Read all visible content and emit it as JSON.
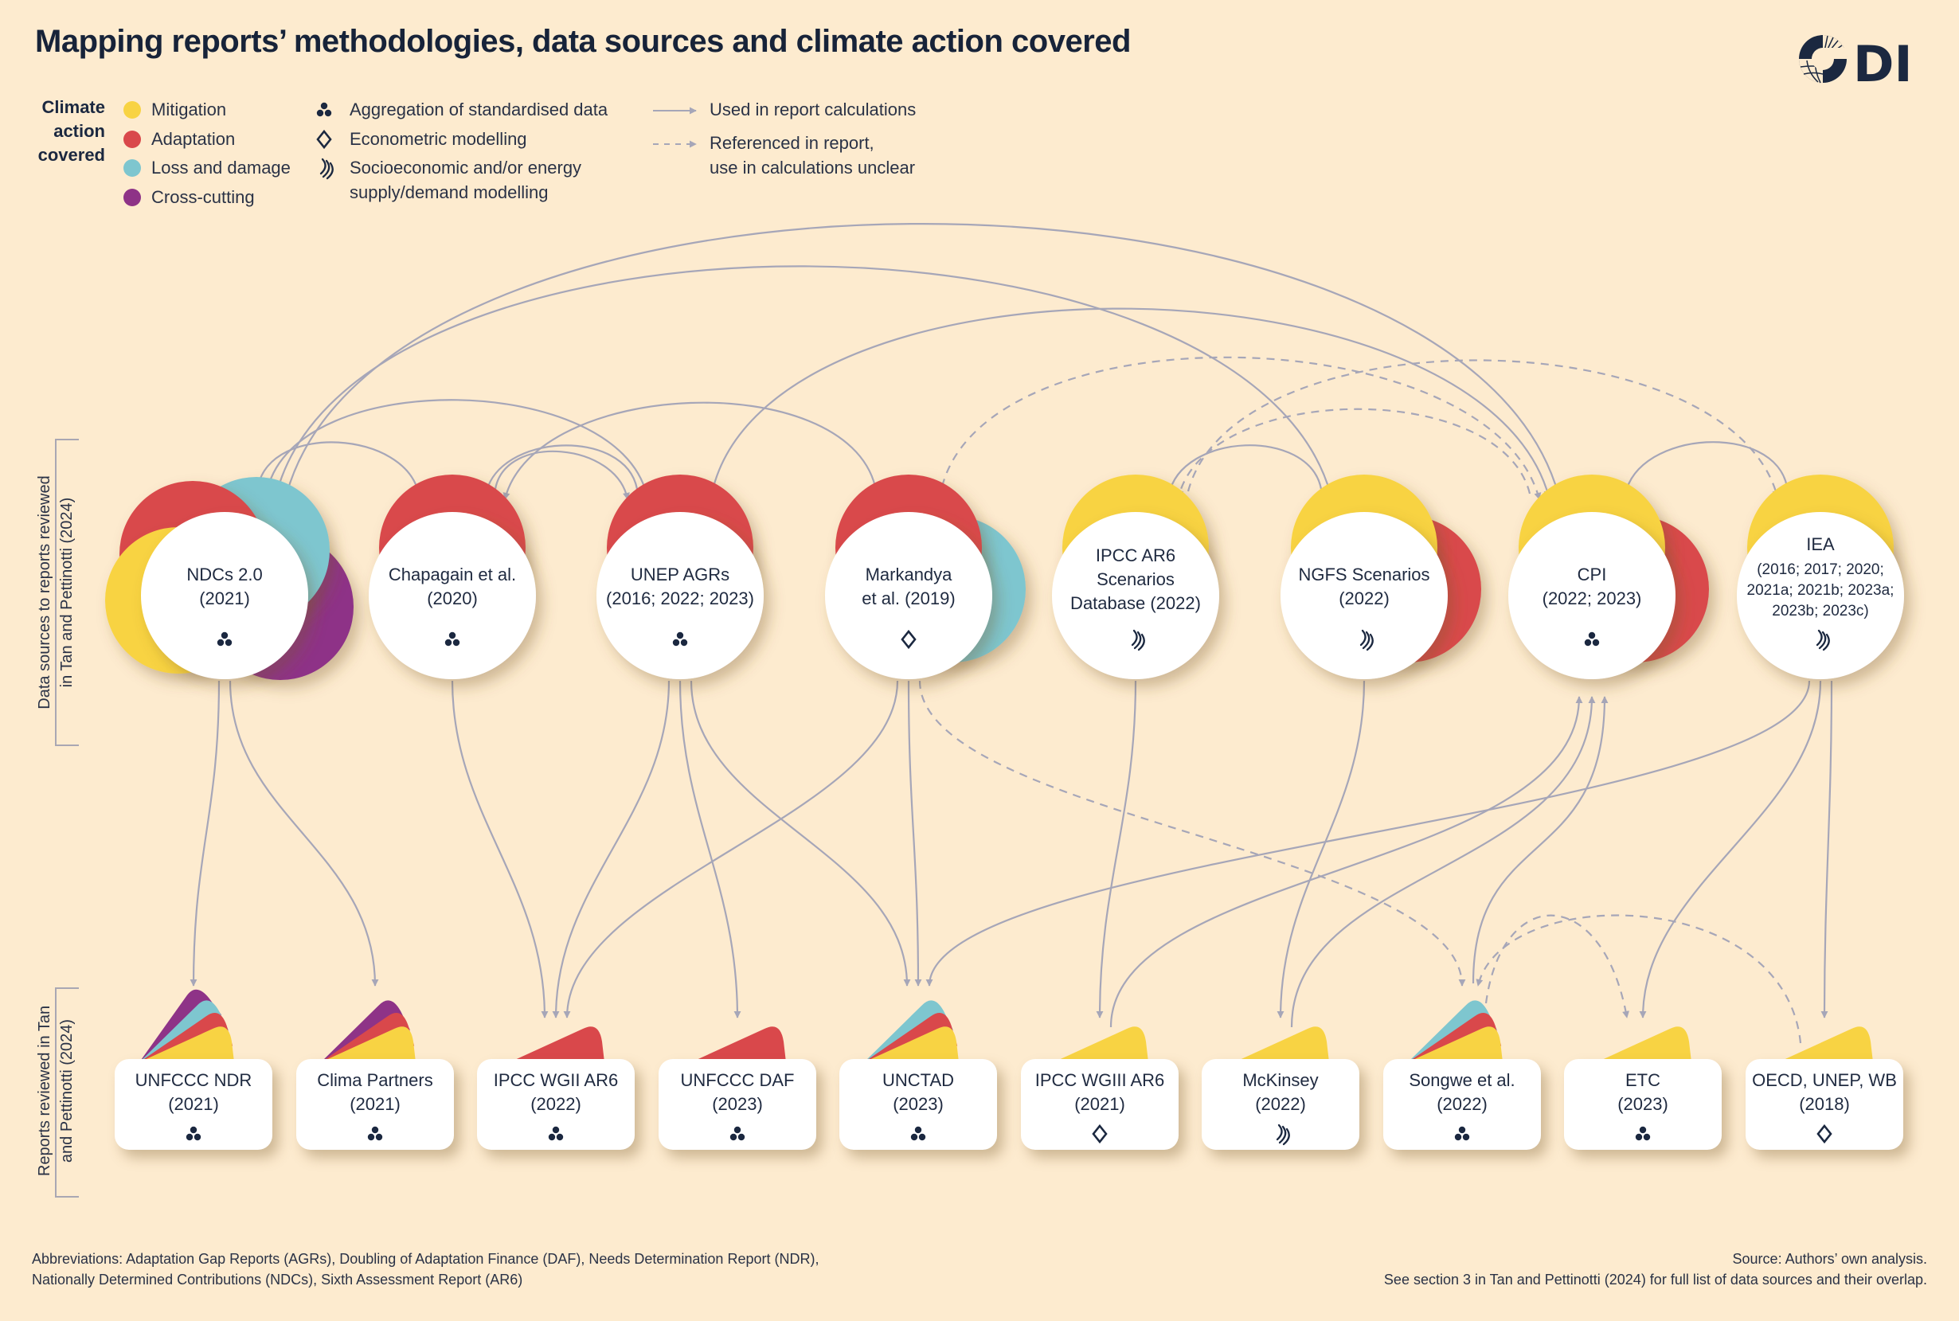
{
  "title": "Mapping reports’ methodologies, data sources and climate action covered",
  "logo_text": "ODI",
  "colors": {
    "mitigation": "#f8d343",
    "adaptation": "#d9484b",
    "loss_and_damage": "#7ec6cf",
    "cross_cutting": "#8e3387",
    "navy": "#1b2840",
    "connector": "#a6a6b8",
    "background": "#fdebcf"
  },
  "legend": {
    "climate_heading": [
      "Climate",
      "action",
      "covered"
    ],
    "climate_items": [
      {
        "key": "mitigation",
        "label": "Mitigation"
      },
      {
        "key": "adaptation",
        "label": "Adaptation"
      },
      {
        "key": "loss_and_damage",
        "label": "Loss and damage"
      },
      {
        "key": "cross_cutting",
        "label": "Cross-cutting"
      }
    ],
    "method_items": [
      {
        "icon": "aggregation",
        "lines": [
          "Aggregation of standardised data"
        ]
      },
      {
        "icon": "econometric",
        "lines": [
          "Econometric modelling"
        ]
      },
      {
        "icon": "modelling",
        "lines": [
          "Socioeconomic and/or energy",
          "supply/demand modelling"
        ]
      }
    ],
    "line_items": [
      {
        "style": "solid",
        "lines": [
          "Used in report calculations"
        ]
      },
      {
        "style": "dashed",
        "lines": [
          "Referenced in report,",
          "use in calculations unclear"
        ]
      }
    ]
  },
  "axis_labels": {
    "sources": [
      "Data sources to reports reviewed",
      "in Tan and Pettinotti (2024)"
    ],
    "reports": [
      "Reports reviewed in Tan",
      "and Pettinotti (2024)"
    ]
  },
  "sources": [
    {
      "id": "ndcs",
      "lines": [
        "NDCs 2.0",
        "(2021)"
      ],
      "method": "aggregation",
      "climate": [
        "cross_cutting",
        "loss_and_damage",
        "adaptation",
        "mitigation"
      ]
    },
    {
      "id": "chapagain",
      "lines": [
        "Chapagain et al.",
        "(2020)"
      ],
      "method": "aggregation",
      "climate": [
        "adaptation"
      ]
    },
    {
      "id": "unep",
      "lines": [
        "UNEP AGRs",
        "(2016; 2022; 2023)"
      ],
      "method": "aggregation",
      "climate": [
        "adaptation"
      ]
    },
    {
      "id": "markandya",
      "lines": [
        "Markandya",
        "et al. (2019)"
      ],
      "method": "econometric",
      "climate": [
        "adaptation",
        "loss_and_damage"
      ]
    },
    {
      "id": "ipccdb",
      "lines": [
        "IPCC AR6",
        "Scenarios",
        "Database (2022)"
      ],
      "method": "modelling",
      "climate": [
        "mitigation"
      ]
    },
    {
      "id": "ngfs",
      "lines": [
        "NGFS Scenarios",
        "(2022)"
      ],
      "method": "modelling",
      "climate": [
        "mitigation",
        "adaptation"
      ]
    },
    {
      "id": "cpi",
      "lines": [
        "CPI",
        "(2022; 2023)"
      ],
      "method": "aggregation",
      "climate": [
        "mitigation",
        "adaptation"
      ]
    },
    {
      "id": "iea",
      "lines": [
        "IEA",
        "(2016; 2017; 2020;",
        "2021a; 2021b; 2023a;",
        "2023b; 2023c)"
      ],
      "method": "modelling",
      "climate": [
        "mitigation"
      ]
    }
  ],
  "reports": [
    {
      "id": "ndr",
      "name": "UNFCCC NDR",
      "year": "(2021)",
      "method": "aggregation",
      "climate": [
        "cross_cutting",
        "loss_and_damage",
        "adaptation",
        "mitigation"
      ]
    },
    {
      "id": "clima",
      "name": "Clima Partners",
      "year": "(2021)",
      "method": "aggregation",
      "climate": [
        "cross_cutting",
        "adaptation",
        "mitigation"
      ]
    },
    {
      "id": "wgii",
      "name": "IPCC WGII AR6",
      "year": "(2022)",
      "method": "aggregation",
      "climate": [
        "adaptation"
      ]
    },
    {
      "id": "daf",
      "name": "UNFCCC DAF",
      "year": "(2023)",
      "method": "aggregation",
      "climate": [
        "adaptation"
      ]
    },
    {
      "id": "unctad",
      "name": "UNCTAD",
      "year": "(2023)",
      "method": "aggregation",
      "climate": [
        "loss_and_damage",
        "adaptation",
        "mitigation"
      ]
    },
    {
      "id": "wgiii",
      "name": "IPCC WGIII AR6",
      "year": "(2021)",
      "method": "econometric",
      "climate": [
        "mitigation"
      ]
    },
    {
      "id": "mckinsey",
      "name": "McKinsey",
      "year": "(2022)",
      "method": "modelling",
      "climate": [
        "mitigation"
      ]
    },
    {
      "id": "songwe",
      "name": "Songwe et al.",
      "year": "(2022)",
      "method": "aggregation",
      "climate": [
        "loss_and_damage",
        "adaptation",
        "mitigation"
      ]
    },
    {
      "id": "etc",
      "name": "ETC",
      "year": "(2023)",
      "method": "aggregation",
      "climate": [
        "mitigation"
      ]
    },
    {
      "id": "oecd",
      "name": "OECD, UNEP, WB",
      "year": "(2018)",
      "method": "econometric",
      "climate": [
        "mitigation"
      ]
    }
  ],
  "connections": [
    {
      "from": "ndcs",
      "to": "chapagain",
      "style": "solid"
    },
    {
      "from": "ndcs",
      "to": "unep",
      "style": "solid"
    },
    {
      "from": "ndcs",
      "to": "ngfs",
      "style": "solid"
    },
    {
      "from": "ndcs",
      "to": "cpi",
      "style": "solid"
    },
    {
      "from": "unep",
      "to": "chapagain",
      "style": "solid"
    },
    {
      "from": "chapagain",
      "to": "unep",
      "style": "solid"
    },
    {
      "from": "markandya",
      "to": "chapagain",
      "style": "solid"
    },
    {
      "from": "unep",
      "to": "cpi",
      "style": "solid"
    },
    {
      "from": "ngfs",
      "to": "ipccdb",
      "style": "solid"
    },
    {
      "from": "iea",
      "to": "cpi",
      "style": "solid"
    },
    {
      "from": "markandya",
      "to": "cpi",
      "style": "dashed"
    },
    {
      "from": "cpi",
      "to": "ipccdb",
      "style": "dashed"
    },
    {
      "from": "ipccdb",
      "to": "iea",
      "style": "dashed"
    },
    {
      "from": "ndcs",
      "to": "ndr",
      "style": "solid"
    },
    {
      "from": "ndcs",
      "to": "clima",
      "style": "solid"
    },
    {
      "from": "chapagain",
      "to": "wgii",
      "style": "solid"
    },
    {
      "from": "unep",
      "to": "wgii",
      "style": "solid"
    },
    {
      "from": "unep",
      "to": "daf",
      "style": "solid"
    },
    {
      "from": "unep",
      "to": "unctad",
      "style": "solid"
    },
    {
      "from": "markandya",
      "to": "wgii",
      "style": "solid"
    },
    {
      "from": "markandya",
      "to": "unctad",
      "style": "solid"
    },
    {
      "from": "markandya",
      "to": "songwe",
      "style": "dashed"
    },
    {
      "from": "iea",
      "to": "unctad",
      "style": "solid"
    },
    {
      "from": "ipccdb",
      "to": "wgiii",
      "style": "solid"
    },
    {
      "from": "ngfs",
      "to": "mckinsey",
      "style": "solid"
    },
    {
      "from": "iea",
      "to": "etc",
      "style": "solid"
    },
    {
      "from": "iea",
      "to": "oecd",
      "style": "solid"
    },
    {
      "from": "wgiii",
      "to": "cpi",
      "style": "solid"
    },
    {
      "from": "mckinsey",
      "to": "cpi",
      "style": "solid"
    },
    {
      "from": "songwe",
      "to": "cpi",
      "style": "solid"
    },
    {
      "from": "songwe",
      "to": "etc",
      "style": "dashed"
    },
    {
      "from": "oecd",
      "to": "songwe",
      "style": "dashed"
    }
  ],
  "footer": {
    "abbreviations": [
      "Abbreviations: Adaptation Gap Reports (AGRs), Doubling of Adaptation Finance (DAF), Needs Determination Report (NDR),",
      "Nationally Determined Contributions (NDCs), Sixth Assessment Report (AR6)"
    ],
    "source": [
      "Source: Authors’ own analysis.",
      "See section 3 in Tan and Pettinotti (2024) for full list of data sources and their overlap."
    ]
  }
}
